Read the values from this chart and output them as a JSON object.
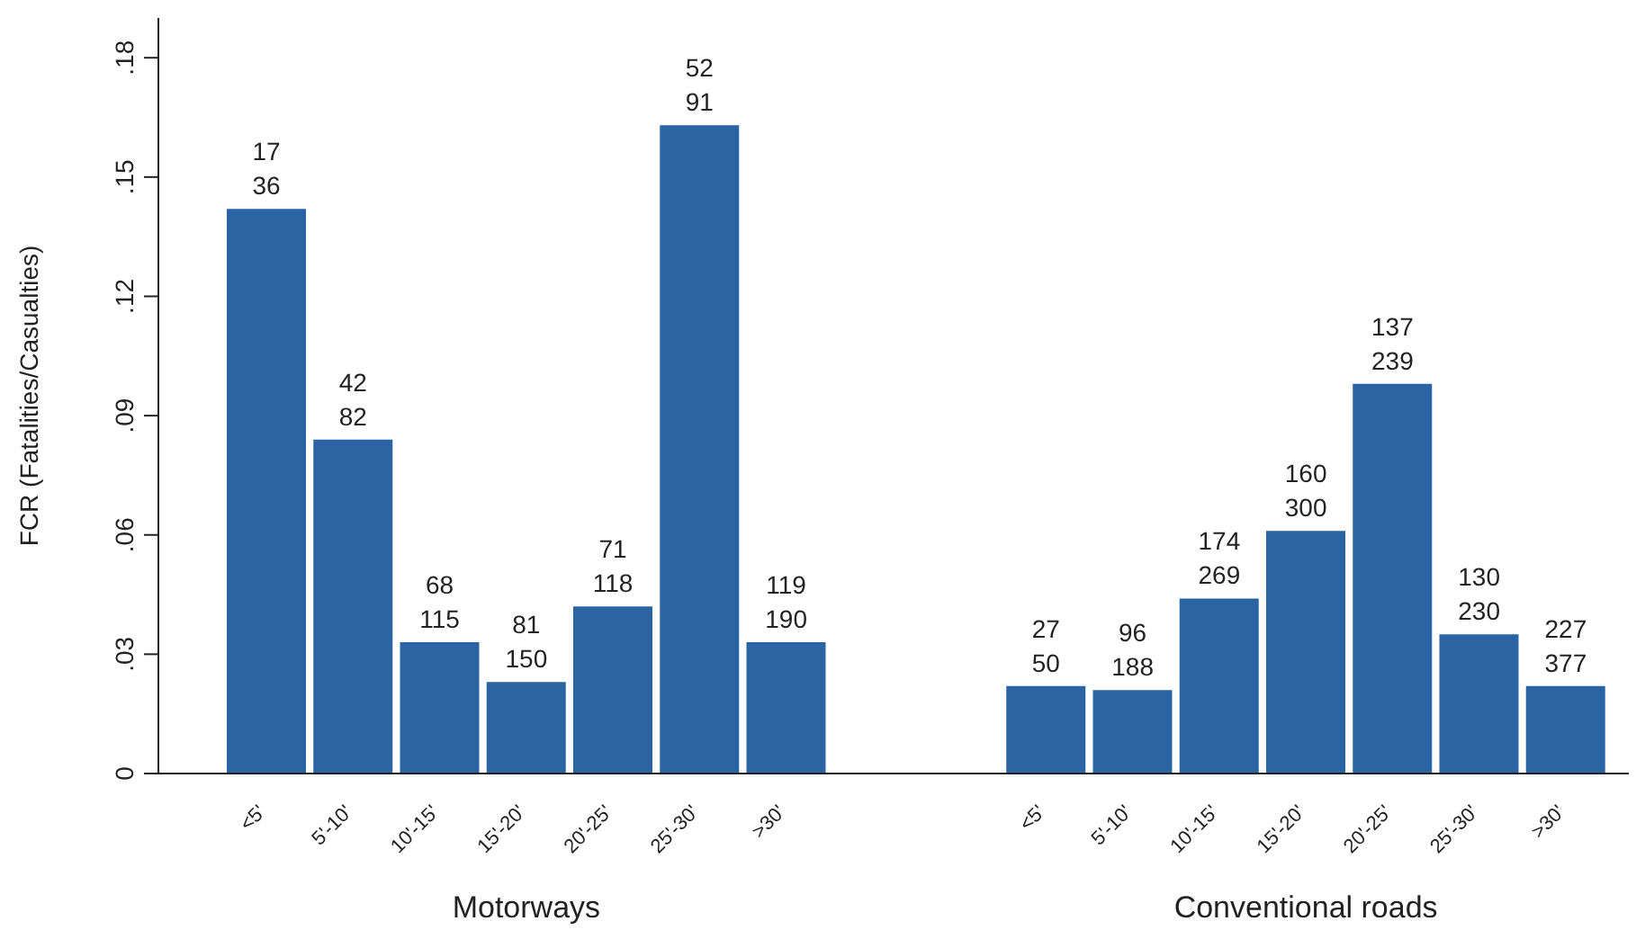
{
  "chart_data": {
    "type": "bar",
    "ylabel": "FCR (Fatalities/Casualties)",
    "categories": [
      "<5'",
      "5'-10'",
      "10'-15'",
      "15'-20'",
      "20'-25'",
      "25'-30'",
      ">30'",
      null,
      null,
      "<5'",
      "5'-10'",
      "10'-15'",
      "15'-20'",
      "20'-25'",
      "25'-30'",
      ">30'"
    ],
    "series": [
      {
        "color": "#2b64a3",
        "values": [
          0.142,
          0.084,
          0.033,
          0.023,
          0.042,
          0.163,
          0.033,
          null,
          null,
          0.022,
          0.021,
          0.044,
          0.061,
          0.098,
          0.035,
          0.022
        ]
      }
    ],
    "annotations": [
      "Motorways",
      "Conventional roads",
      {
        "text": "17\n36",
        "x": "<5'",
        "y": 0.142
      },
      {
        "text": "42\n82",
        "x": "5'-10'",
        "y": 0.084
      },
      {
        "text": "68\n115",
        "x": "10'-15'",
        "y": 0.033
      },
      {
        "text": "81\n150",
        "x": "15'-20'",
        "y": 0.023
      },
      {
        "text": "71\n118",
        "x": "20'-25'",
        "y": 0.042
      },
      {
        "text": "52\n91",
        "x": "25'-30'",
        "y": 0.163
      },
      {
        "text": "119\n190",
        "x": ">30'",
        "y": 0.033
      },
      "27\n50",
      "96\n188",
      "174\n269",
      "160\n300",
      "137\n239",
      "130\n230",
      "227\n377"
    ],
    "ylim": [
      0,
      0.19
    ],
    "yticks": [
      0,
      {
        "value": 0.03,
        "label": ".03"
      },
      {
        "value": 0.06,
        "label": ".06"
      },
      {
        "value": 0.09,
        "label": ".09"
      },
      {
        "value": 0.12,
        "label": ".12"
      },
      {
        "value": 0.15,
        "label": ".15"
      },
      {
        "value": 0.18,
        "label": ".18"
      }
    ]
  }
}
